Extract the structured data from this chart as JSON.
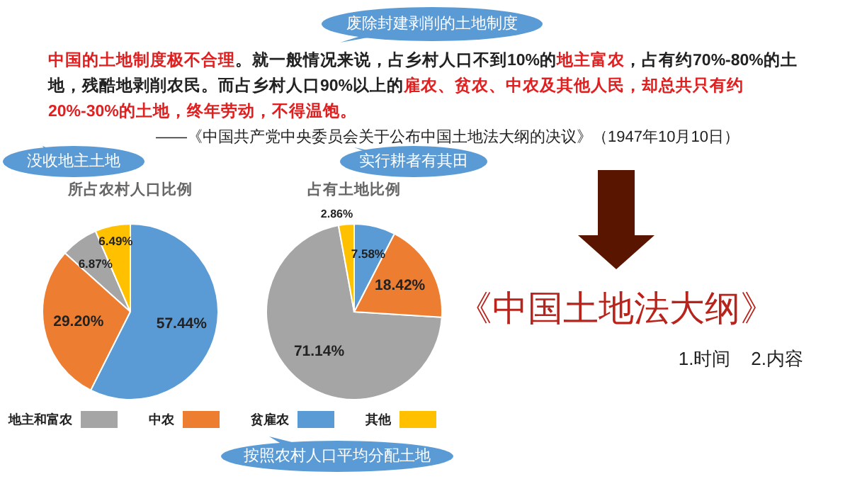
{
  "chart_data": [
    {
      "type": "other",
      "annotations": [
        "中国的土地制度极不合理",
        "。就一般情况来说，占乡村人口不到10%的",
        "地主富农",
        "，占有约70%-80%的土地，残酷地剥削农民。而占乡村人口90%以上的",
        "雇农、贫农、中农及其他人民，却总共只有约20%-30%的土地，终年劳动，不得温饱。",
        "——《中国共产党中央委员会关于公布中国土地法大纲的决议》（1947年10月10日）"
      ]
    },
    {
      "type": "pie",
      "title": "所占农村人口比例",
      "categories": [
        "地主和富农",
        "中农",
        "贫雇农",
        "其他"
      ],
      "values": [
        6.87,
        29.2,
        57.44,
        6.49
      ],
      "colors": [
        "#a5a5a5",
        "#ed7d31",
        "#5b9bd5",
        "#ffc000"
      ],
      "value_labels": [
        "6.87%",
        "29.20%",
        "57.44%",
        "6.49%"
      ],
      "legend": "bottom"
    },
    {
      "type": "pie",
      "title": "占有土地比例",
      "categories": [
        null,
        null,
        null,
        null
      ],
      "values": [
        71.14,
        18.42,
        7.58,
        2.86
      ],
      "colors": [
        "#a5a5a5",
        "#ed7d31",
        "#5b9bd5",
        "#ffc000"
      ],
      "value_labels": [
        "71.14%",
        "18.42%",
        "7.58%",
        "2.86%"
      ]
    },
    {
      "type": "other",
      "title": "《中国土地法大纲》",
      "subtitle": "1.时间    2.内容",
      "annotations": [
        "废除封建剥削的土地制度",
        "没收地主土地",
        "实行耕者有其田",
        "按照农村人口平均分配土地"
      ]
    }
  ]
}
